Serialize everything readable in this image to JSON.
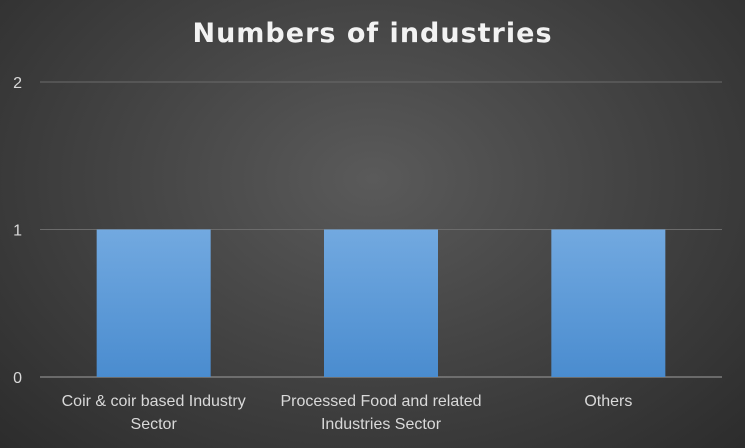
{
  "chart_data": {
    "type": "bar",
    "title": "Numbers of industries",
    "categories": [
      [
        "Coir & coir based Industry",
        "Sector"
      ],
      [
        "Processed Food and related",
        "Industries Sector"
      ],
      [
        "Others"
      ]
    ],
    "values": [
      1,
      1,
      1
    ],
    "ylim": [
      0,
      2
    ],
    "yticks": [
      "0",
      "1",
      "2"
    ],
    "xlabel": "",
    "ylabel": "",
    "grid": true,
    "bar_color": "#5b9bd5",
    "gridline_color": "#6b6b6b",
    "background_color": "#404040"
  }
}
